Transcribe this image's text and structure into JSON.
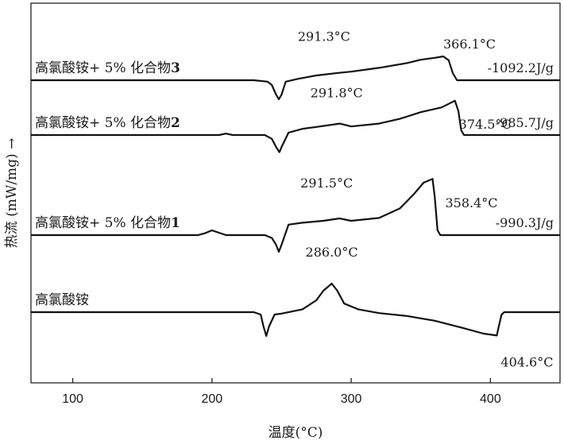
{
  "chart_data": {
    "type": "line",
    "xlabel": "温度(°C)",
    "ylabel": "热流 (mW/mg) →",
    "xlim": [
      70,
      450
    ],
    "xticks": [
      100,
      200,
      300,
      400
    ],
    "grid": false,
    "legend": "none",
    "line_color": "#111111",
    "series": [
      {
        "name": "高氯酸铵+ 5% 化合物3",
        "label_main": "高氯酸铵+ 5% 化合物",
        "label_bold": "3",
        "enthalpy": "-1092.2J/g",
        "points": [
          [
            70,
            0
          ],
          [
            230,
            0
          ],
          [
            240,
            -0.3
          ],
          [
            243,
            -1.0
          ],
          [
            246,
            -3.0
          ],
          [
            248,
            -4.0
          ],
          [
            250,
            -3.0
          ],
          [
            253,
            -0.3
          ],
          [
            262,
            0.3
          ],
          [
            275,
            1.0
          ],
          [
            291.3,
            1.55
          ],
          [
            300,
            1.8
          ],
          [
            320,
            2.6
          ],
          [
            340,
            3.6
          ],
          [
            350,
            4.3
          ],
          [
            360,
            4.7
          ],
          [
            366.1,
            5.0
          ],
          [
            370,
            4.2
          ],
          [
            373,
            1.5
          ],
          [
            376,
            0.0
          ],
          [
            450,
            0
          ]
        ]
      },
      {
        "name": "高氯酸铵+ 5% 化合物2",
        "label_main": "高氯酸铵+ 5% 化合物",
        "label_bold": "2",
        "enthalpy": "-985.7J/g",
        "points": [
          [
            70,
            0
          ],
          [
            205,
            0
          ],
          [
            210,
            0.3
          ],
          [
            215,
            0
          ],
          [
            238,
            0
          ],
          [
            243,
            -0.8
          ],
          [
            246,
            -2.5
          ],
          [
            248.5,
            -3.6
          ],
          [
            250,
            -2.5
          ],
          [
            255,
            0.5
          ],
          [
            265,
            1.3
          ],
          [
            275,
            1.7
          ],
          [
            291.8,
            2.4
          ],
          [
            300,
            1.8
          ],
          [
            320,
            2.4
          ],
          [
            335,
            3.4
          ],
          [
            350,
            4.8
          ],
          [
            365,
            5.8
          ],
          [
            374.5,
            7.2
          ],
          [
            377,
            5.0
          ],
          [
            379,
            1.0
          ],
          [
            381,
            0.0
          ],
          [
            450,
            0
          ]
        ]
      },
      {
        "name": "高氯酸铵+ 5% 化合物1",
        "label_main": "高氯酸铵+ 5% 化合物",
        "label_bold": "1",
        "enthalpy": "-990.3J/g",
        "points": [
          [
            70,
            0
          ],
          [
            190,
            0
          ],
          [
            195,
            0.4
          ],
          [
            200,
            1.0
          ],
          [
            205,
            0.5
          ],
          [
            210,
            0
          ],
          [
            238,
            0
          ],
          [
            243,
            -0.6
          ],
          [
            246,
            -2.0
          ],
          [
            248,
            -3.5
          ],
          [
            250,
            -2.0
          ],
          [
            255,
            2.2
          ],
          [
            265,
            2.6
          ],
          [
            280,
            3.0
          ],
          [
            291.5,
            3.5
          ],
          [
            300,
            3.0
          ],
          [
            320,
            3.6
          ],
          [
            335,
            5.6
          ],
          [
            345,
            8.6
          ],
          [
            352,
            11.0
          ],
          [
            358.4,
            11.8
          ],
          [
            360,
            8.0
          ],
          [
            362,
            1.0
          ],
          [
            364,
            0
          ],
          [
            450,
            0
          ]
        ]
      },
      {
        "name": "高氯酸铵",
        "label_main": "高氯酸铵",
        "label_bold": "",
        "enthalpy": "",
        "points": [
          [
            70,
            0
          ],
          [
            230,
            0
          ],
          [
            235,
            -0.5
          ],
          [
            237,
            -3.0
          ],
          [
            239,
            -5.0
          ],
          [
            241,
            -3.0
          ],
          [
            245,
            -0.5
          ],
          [
            250,
            -0.3
          ],
          [
            265,
            0.6
          ],
          [
            275,
            2.5
          ],
          [
            280,
            4.5
          ],
          [
            286.0,
            6.0
          ],
          [
            290,
            4.5
          ],
          [
            295,
            1.8
          ],
          [
            305,
            0.6
          ],
          [
            320,
            -0.2
          ],
          [
            340,
            -0.8
          ],
          [
            360,
            -1.8
          ],
          [
            380,
            -3.3
          ],
          [
            395,
            -4.5
          ],
          [
            404.6,
            -4.9
          ],
          [
            406,
            -3.0
          ],
          [
            408,
            -0.5
          ],
          [
            410,
            0
          ],
          [
            450,
            0
          ]
        ]
      }
    ],
    "peak_annotations": [
      {
        "text": "291.3°C",
        "x": 291.3,
        "series": 0
      },
      {
        "text": "366.1°C",
        "x": 366.1,
        "series": 0
      },
      {
        "text": "291.8°C",
        "x": 291.8,
        "series": 1
      },
      {
        "text": "374.5°C",
        "x": 374.5,
        "series": 1
      },
      {
        "text": "291.5°C",
        "x": 291.5,
        "series": 2
      },
      {
        "text": "358.4°C",
        "x": 358.4,
        "series": 2
      },
      {
        "text": "286.0°C",
        "x": 286.0,
        "series": 3
      },
      {
        "text": "404.6°C",
        "x": 404.6,
        "series": 3
      }
    ]
  }
}
